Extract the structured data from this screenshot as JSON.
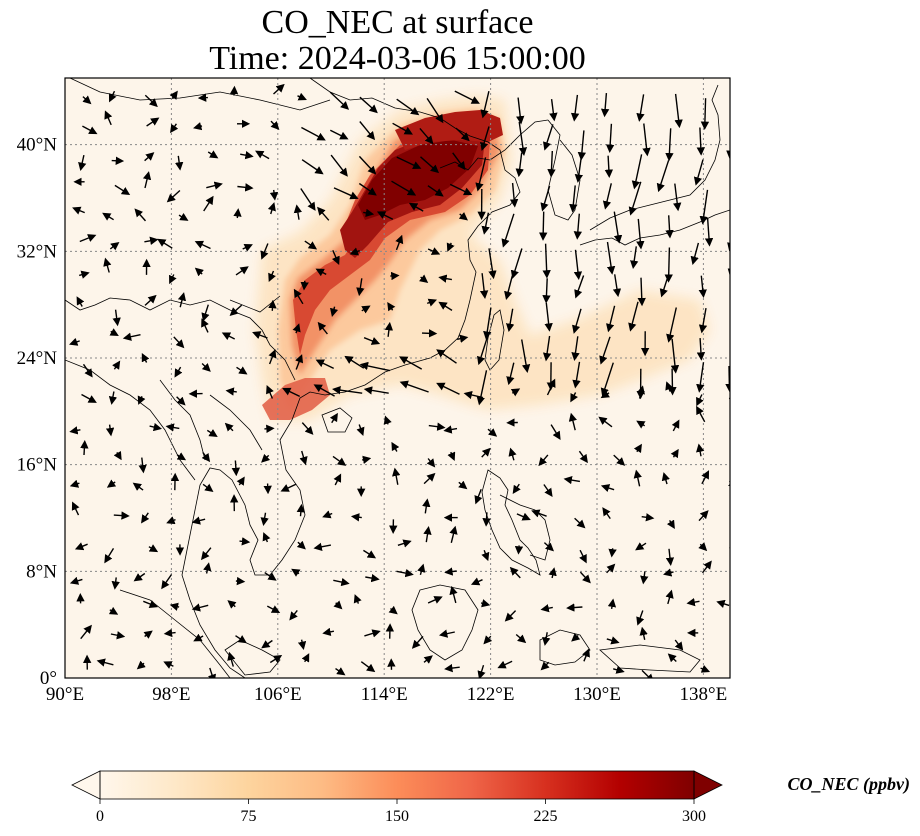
{
  "map": {
    "title_line1": "CO_NEC at surface",
    "title_line2": "Time: 2024-03-06 15:00:00",
    "extent": {
      "lon": [
        90,
        140
      ],
      "lat": [
        0,
        45
      ]
    },
    "lon_ticks": [
      90,
      98,
      106,
      114,
      122,
      130,
      138
    ],
    "lon_tick_labels": [
      "90°E",
      "98°E",
      "106°E",
      "114°E",
      "122°E",
      "130°E",
      "138°E"
    ],
    "lat_ticks": [
      0,
      8,
      16,
      24,
      32,
      40
    ],
    "lat_tick_labels": [
      "0°",
      "8°N",
      "16°N",
      "24°N",
      "32°N",
      "40°N"
    ],
    "gridlines": true,
    "field_colors": {
      "background": "#fdf5ea",
      "low": "#fde2bb",
      "mid": "#f08a5a",
      "high": "#c6291f",
      "max": "#800000"
    }
  },
  "colorbar": {
    "title": "CO_NEC (ppbv)",
    "min": 0,
    "max": 300,
    "ticks": [
      0,
      75,
      150,
      225,
      300
    ],
    "tick_labels": [
      "0",
      "75",
      "150",
      "225",
      "300"
    ],
    "extend": "both",
    "colors": [
      "#fff7ec",
      "#fee8c8",
      "#fdd49e",
      "#fdbb84",
      "#fc8d59",
      "#ef6548",
      "#d7301f",
      "#b30000",
      "#7f0000"
    ]
  }
}
